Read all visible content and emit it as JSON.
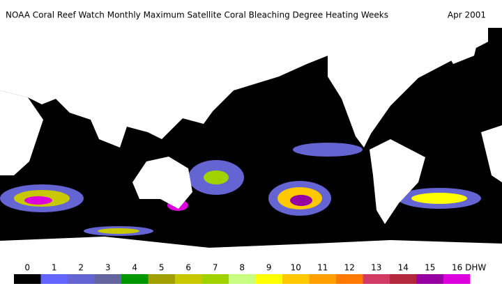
{
  "title": "NOAA Coral Reef Watch Monthly Maximum Satellite Coral Bleaching Degree Heating Weeks",
  "date": "Apr 2001",
  "legend": {
    "ticks": [
      0,
      1,
      2,
      3,
      4,
      5,
      6,
      7,
      8,
      9,
      10,
      11,
      12,
      13,
      14,
      15,
      {
        "value": 16,
        "label": "16 DHW"
      }
    ],
    "colors": [
      "#000000",
      "#6464ff",
      "#6464d2",
      "#64649f",
      "#009600",
      "#a0a000",
      "#c8c800",
      "#a0d200",
      "#c8ff82",
      "#ffff00",
      "#ffc800",
      "#ffa000",
      "#ff7800",
      "#d23c64",
      "#b4283c",
      "#9600a0",
      "#dc00dc"
    ]
  }
}
